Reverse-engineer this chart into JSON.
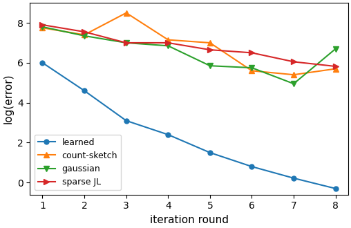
{
  "x": [
    1,
    2,
    3,
    4,
    5,
    6,
    7,
    8
  ],
  "learned": [
    6.0,
    4.6,
    3.1,
    2.4,
    1.5,
    0.8,
    0.22,
    -0.3
  ],
  "count_sketch": [
    7.75,
    7.4,
    8.5,
    7.15,
    7.0,
    5.6,
    5.4,
    5.7
  ],
  "gaussian": [
    7.8,
    7.35,
    7.0,
    6.85,
    5.85,
    5.75,
    4.95,
    6.7
  ],
  "sparse_jl": [
    7.9,
    7.55,
    7.0,
    7.0,
    6.65,
    6.5,
    6.05,
    5.82
  ],
  "colors": {
    "learned": "#1f77b4",
    "count_sketch": "#ff7f0e",
    "gaussian": "#2ca02c",
    "sparse_jl": "#d62728"
  },
  "labels": {
    "learned": "learned",
    "count_sketch": "count-sketch",
    "gaussian": "gaussian",
    "sparse_jl": "sparse JL"
  },
  "xlabel": "iteration round",
  "ylabel": "log(error)",
  "xlim": [
    0.7,
    8.3
  ],
  "ylim": [
    -0.6,
    9.0
  ],
  "yticks": [
    0,
    2,
    4,
    6,
    8
  ],
  "xticks": [
    1,
    2,
    3,
    4,
    5,
    6,
    7,
    8
  ],
  "legend_loc": "lower left",
  "legend_fontsize": 9,
  "figsize": [
    5.08,
    3.3
  ],
  "dpi": 100
}
